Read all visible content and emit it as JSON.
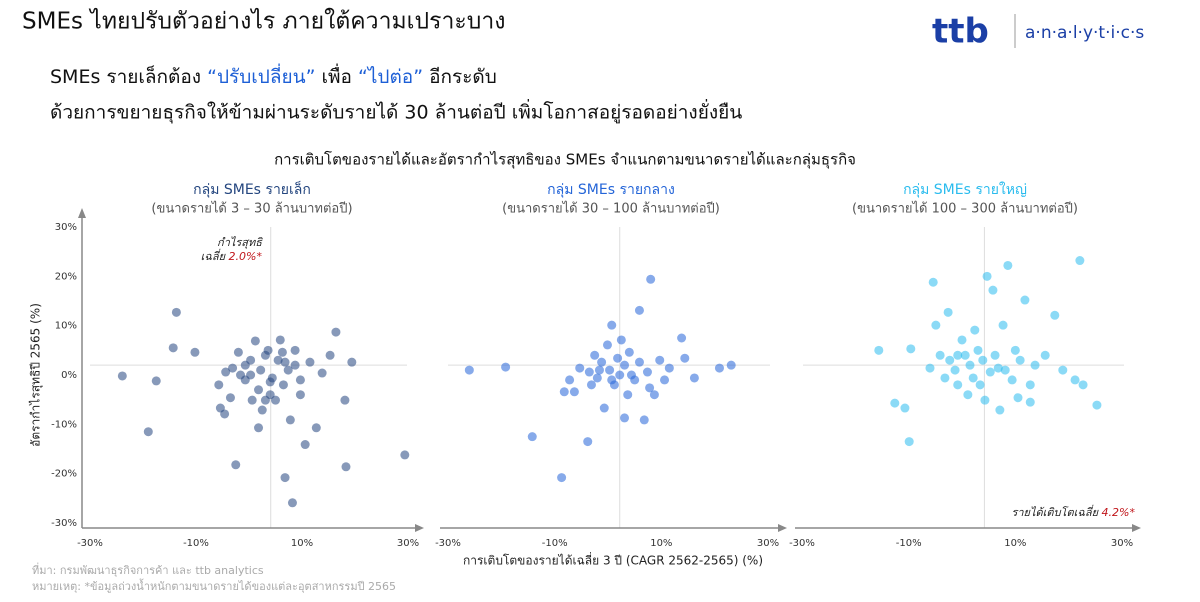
{
  "title": "SMEs ไทยปรับตัวอย่างไร ภายใต้ความเปราะบาง",
  "logo": {
    "brand": "ttb",
    "product": "a·n·a·l·y·t·i·c·s"
  },
  "subtitle": {
    "line1": [
      "SMEs รายเล็กต้อง",
      "“ปรับเปลี่ยน”",
      "เพื่อ",
      "“ไปต่อ”",
      "อีกระดับ"
    ],
    "line2": "ด้วยการขยายธุรกิจให้ข้ามผ่านระดับรายได้ 30 ล้านต่อปี เพิ่มโอกาสอยู่รอดอย่างยั่งยืน"
  },
  "chart_heading": "การเติบโตของรายได้และอัตรากำไรสุทธิของ SMEs จำแนกตามขนาดรายได้และกลุ่มธุรกิจ",
  "source": "ที่มา: กรมพัฒนาธุรกิจการค้า และ ttb analytics",
  "note": "หมายเหตุ: *ข้อมูลถ่วงน้ำหนักตามขนาดรายได้ของแต่ละอุตสาหกรรมปี 2565",
  "chart_data": [
    {
      "type": "scatter",
      "title": "กลุ่ม SMEs รายเล็ก",
      "subtitle": "(ขนาดรายได้ 3 – 30 ล้านบาทต่อปี)",
      "color": "#24467f",
      "ylabel": "อัตรากำไรสุทธิปี 2565 (%)",
      "xlim": [
        -30,
        30
      ],
      "ylim": [
        -30,
        30
      ],
      "xticks": [
        {
          "value": -30,
          "label": "-30%"
        },
        {
          "value": -10,
          "label": "-10%"
        },
        {
          "value": 10,
          "label": "10%"
        },
        {
          "value": 30,
          "label": "30%"
        }
      ],
      "yticks": [
        {
          "value": -30,
          "label": "-30%"
        },
        {
          "value": -20,
          "label": "-20%"
        },
        {
          "value": -10,
          "label": "-10%"
        },
        {
          "value": 0,
          "label": "0%"
        },
        {
          "value": 10,
          "label": "10%"
        },
        {
          "value": 20,
          "label": "20%"
        },
        {
          "value": 30,
          "label": "30%"
        }
      ],
      "ref_x": 4.1,
      "ref_y": {
        "value": 2.0,
        "label": "2.0%*"
      },
      "ref_y_note": [
        "กำไรสุทธิ",
        "เฉลี่ย"
      ],
      "x": [
        -23.9,
        -19,
        -17.5,
        -13.7,
        -14.3,
        -10.2,
        -5.7,
        -5.4,
        -4.6,
        -2.5,
        -3.1,
        -1.6,
        -0.7,
        0.3,
        1.2,
        1.8,
        2.2,
        3.1,
        2.5,
        1.8,
        4,
        4.4,
        5,
        5.5,
        5.9,
        6.5,
        6.8,
        7.4,
        8.2,
        7.8,
        8.7,
        9.7,
        10.6,
        11.5,
        12.7,
        13.8,
        15.3,
        16.4,
        18.1,
        18.3,
        19.4,
        29.4,
        -0.7,
        -2,
        3.6,
        6.3,
        -4.4,
        -3.5,
        0.6,
        4,
        9.7,
        8.7,
        3.1,
        0.3,
        6.8
      ],
      "y": [
        -0.2,
        -11.5,
        -1.2,
        12.7,
        5.5,
        4.6,
        -2,
        -6.7,
        -7.9,
        -18.2,
        1.4,
        0,
        -1,
        3,
        6.9,
        -3,
        1,
        4,
        -7.1,
        -10.7,
        -4,
        -0.6,
        -5.1,
        3,
        7.1,
        -2,
        -20.8,
        1,
        -25.9,
        -9.1,
        2,
        -1,
        -14.1,
        2.6,
        -10.7,
        0.4,
        4,
        8.7,
        -5.1,
        -18.6,
        2.6,
        -16.2,
        2,
        4.6,
        5,
        4.6,
        0.6,
        -4.6,
        -5.1,
        -1.4,
        -4,
        5,
        -5.1,
        0,
        2.6
      ]
    },
    {
      "type": "scatter",
      "title": "กลุ่ม SMEs รายกลาง",
      "subtitle": "(ขนาดรายได้ 30 – 100 ล้านบาทต่อปี)",
      "color": "#2465d8",
      "xlabel": "การเติบโตของรายได้เฉลี่ย 3 ปี (CAGR 2562-2565) (%)",
      "xlim": [
        -30,
        30
      ],
      "ylim": [
        -30,
        30
      ],
      "xticks": [
        {
          "value": -30,
          "label": "-30%"
        },
        {
          "value": -10,
          "label": "-10%"
        },
        {
          "value": 10,
          "label": "10%"
        },
        {
          "value": 30,
          "label": "30%"
        }
      ],
      "ref_x": 2.2,
      "ref_y": 2.0,
      "x": [
        -26,
        -19.2,
        -14.2,
        -8.7,
        -8.2,
        -7.2,
        -5.3,
        -3.8,
        -3.5,
        -2.5,
        -2,
        -1.2,
        -0.7,
        -0.1,
        0.3,
        0.7,
        1.2,
        1.8,
        2.2,
        2.5,
        3.1,
        3.1,
        3.7,
        4,
        5,
        5.9,
        6.8,
        7.4,
        8,
        8.7,
        9.7,
        10.6,
        11.5,
        13.8,
        14.4,
        16.2,
        20.9,
        23.1,
        -1.6,
        0.7,
        4.4,
        -3.1,
        5.9,
        -6.3,
        7.8
      ],
      "y": [
        1,
        1.6,
        -12.5,
        -20.8,
        -3.4,
        -1,
        1.4,
        -13.5,
        0.6,
        4,
        -0.6,
        2.6,
        -6.7,
        6.1,
        1,
        10.1,
        -2,
        3.4,
        0,
        7.1,
        -8.7,
        2,
        -4,
        4.6,
        -1,
        2.6,
        -9.1,
        0.6,
        19.4,
        -4,
        3,
        -1,
        1.4,
        7.5,
        3.4,
        -0.6,
        1.4,
        2,
        1,
        -1,
        0,
        -2,
        13.1,
        -3.4,
        -2.6
      ]
    },
    {
      "type": "scatter",
      "title": "กลุ่ม SMEs รายใหญ่",
      "subtitle": "(ขนาดรายได้ 100 – 300 ล้านบาทต่อปี)",
      "color": "#2bbcee",
      "xlim": [
        -30,
        30
      ],
      "ylim": [
        -30,
        30
      ],
      "xticks": [
        {
          "value": -30,
          "label": "-30%"
        },
        {
          "value": -10,
          "label": "-10%"
        },
        {
          "value": 10,
          "label": "10%"
        },
        {
          "value": 30,
          "label": "30%"
        }
      ],
      "ref_x": {
        "value": 4.2,
        "label": "4.2%*"
      },
      "ref_x_note": "รายได้เติบโตเฉลี่ย",
      "ref_y": 2.0,
      "x": [
        -15.6,
        -12.6,
        -10.7,
        -9.9,
        -9.6,
        -6,
        -5.4,
        -4.9,
        -4.1,
        -3.2,
        -2.6,
        -2.3,
        -1.3,
        -0.8,
        0,
        0.6,
        1.1,
        1.5,
        2.1,
        2.4,
        3,
        3.4,
        3.9,
        4.3,
        4.7,
        5.3,
        5.8,
        6.2,
        6.8,
        7.1,
        7.7,
        8.6,
        9.4,
        10,
        10.5,
        11.8,
        12.8,
        13.7,
        15.6,
        17.4,
        18.9,
        21.2,
        22.1,
        22.7,
        25.3,
        12.8,
        -0.8,
        8.1,
        10.9
      ],
      "y": [
        5,
        -5.7,
        -6.7,
        -13.5,
        5.3,
        1.4,
        18.8,
        10.1,
        4,
        -0.6,
        12.7,
        3,
        1,
        -2,
        7.1,
        4,
        -4,
        2,
        -0.6,
        9.1,
        5,
        -2,
        3,
        -5.1,
        20,
        0.6,
        17.2,
        4,
        1.4,
        -7.1,
        10.1,
        22.2,
        -1,
        5,
        -4.6,
        15.2,
        -2,
        2,
        4,
        12.1,
        1,
        -1,
        23.2,
        -2,
        -6.1,
        -5.5,
        4,
        1,
        3
      ]
    }
  ]
}
